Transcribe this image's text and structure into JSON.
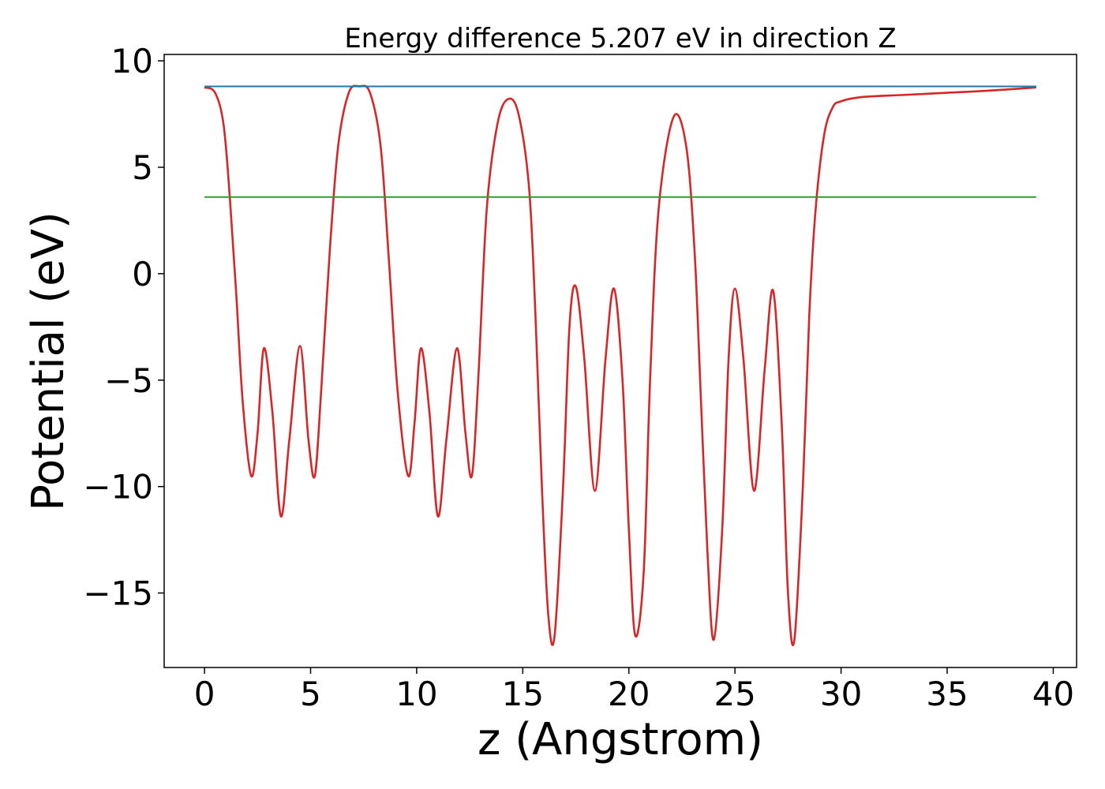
{
  "chart_data": {
    "type": "line",
    "title": "Energy difference 5.207 eV in direction Z",
    "xlabel": "z (Angstrom)",
    "ylabel": "Potential (eV)",
    "xlim": [
      -1.9,
      41.1
    ],
    "ylim": [
      -18.5,
      10.3
    ],
    "xticks": [
      0,
      5,
      10,
      15,
      20,
      25,
      30,
      35,
      40
    ],
    "yticks": [
      -15,
      -10,
      -5,
      0,
      5,
      10
    ],
    "xtick_labels": [
      "0",
      "5",
      "10",
      "15",
      "20",
      "25",
      "30",
      "35",
      "40"
    ],
    "ytick_labels": [
      "−15",
      "−10",
      "−5",
      "0",
      "5",
      "10"
    ],
    "grid": false,
    "legend": "none",
    "series": [
      {
        "color": "#d62728",
        "x": [
          0.0,
          0.5,
          0.9,
          1.2,
          1.5,
          1.8,
          2.2,
          2.5,
          2.8,
          3.2,
          3.6,
          4.0,
          4.5,
          4.9,
          5.2,
          5.5,
          5.9,
          6.3,
          6.8,
          7.3,
          7.8,
          8.3,
          8.7,
          9.1,
          9.6,
          9.9,
          10.2,
          10.6,
          11.0,
          11.4,
          11.9,
          12.3,
          12.6,
          12.9,
          13.3,
          13.8,
          14.3,
          14.8,
          15.3,
          15.6,
          15.9,
          16.2,
          16.5,
          16.9,
          17.2,
          17.5,
          17.9,
          18.4,
          18.9,
          19.3,
          19.7,
          20.0,
          20.3,
          20.7,
          21.0,
          21.4,
          22.1,
          22.7,
          23.1,
          23.4,
          23.7,
          24.0,
          24.4,
          24.7,
          25.0,
          25.4,
          25.9,
          26.4,
          26.8,
          27.2,
          27.5,
          27.8,
          28.2,
          28.5,
          28.8,
          29.2,
          29.6,
          30.0,
          31.0,
          33.0,
          35.0,
          37.0,
          39.2
        ],
        "y": [
          8.75,
          8.5,
          7.0,
          3.5,
          -1.0,
          -6.0,
          -9.5,
          -7.5,
          -3.5,
          -6.5,
          -11.4,
          -7.8,
          -3.4,
          -7.8,
          -9.5,
          -5.5,
          1.0,
          6.0,
          8.5,
          8.8,
          8.5,
          6.0,
          0.5,
          -5.5,
          -9.5,
          -7.0,
          -3.5,
          -6.5,
          -11.4,
          -7.8,
          -3.5,
          -7.5,
          -9.5,
          -5.0,
          3.0,
          7.0,
          8.2,
          7.5,
          4.0,
          -2.0,
          -10.0,
          -16.0,
          -17.0,
          -10.0,
          -2.5,
          -0.6,
          -4.0,
          -10.2,
          -4.0,
          -0.7,
          -5.0,
          -12.0,
          -17.0,
          -14.0,
          -5.0,
          3.0,
          7.35,
          6.0,
          1.0,
          -6.0,
          -13.0,
          -17.2,
          -12.0,
          -4.0,
          -0.7,
          -4.0,
          -10.2,
          -4.5,
          -0.8,
          -7.0,
          -15.0,
          -17.2,
          -10.0,
          -2.0,
          3.0,
          6.5,
          7.8,
          8.1,
          8.3,
          8.4,
          8.5,
          8.6,
          8.75
        ]
      },
      {
        "color": "#1f77b4",
        "x": [
          0.0,
          39.2
        ],
        "y": [
          8.8,
          8.8
        ]
      },
      {
        "color": "#2ca02c",
        "x": [
          0.0,
          39.2
        ],
        "y": [
          3.6,
          3.6
        ]
      }
    ]
  }
}
